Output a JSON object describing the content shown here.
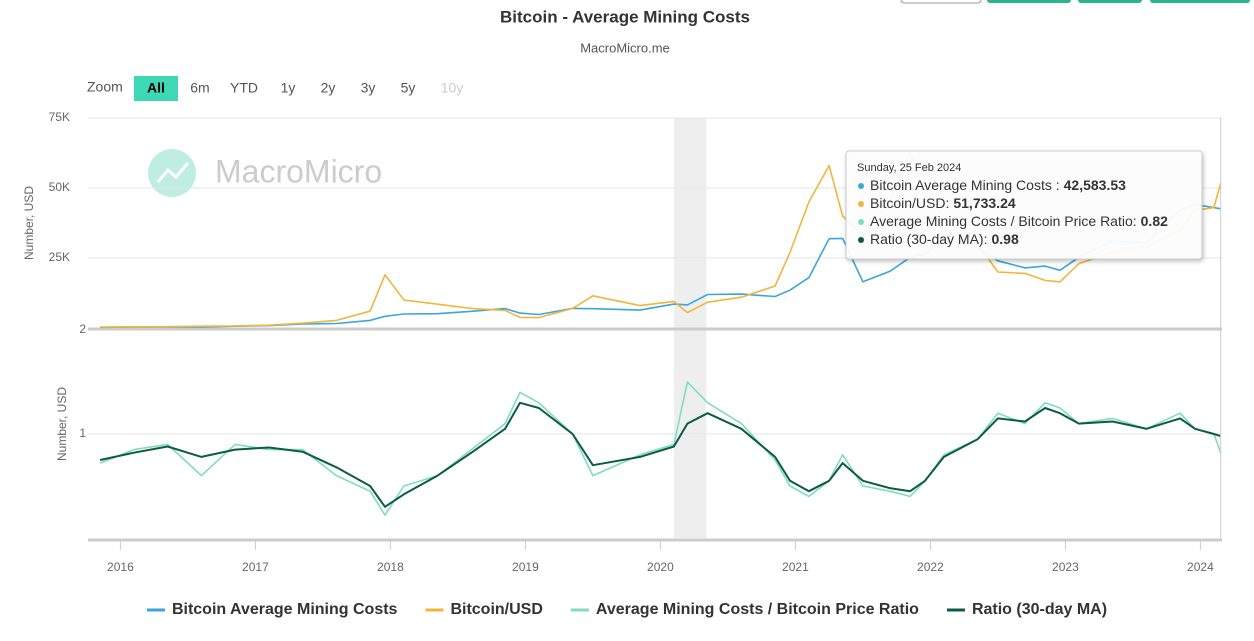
{
  "chart_data": {
    "type": "line",
    "title": "Bitcoin - Average Mining Costs",
    "subtitle": "MacroMicro.me",
    "watermark": "MacroMicro",
    "zoom": {
      "label": "Zoom",
      "buttons": [
        "All",
        "6m",
        "YTD",
        "1y",
        "2y",
        "3y",
        "5y",
        "10y"
      ],
      "active": "All",
      "disabled": [
        "10y"
      ]
    },
    "ylabel": "Number, USD",
    "y2label": "Number, USD",
    "x": [
      2015.85,
      2016.1,
      2016.35,
      2016.6,
      2016.85,
      2017.1,
      2017.35,
      2017.6,
      2017.85,
      2017.96,
      2018.1,
      2018.35,
      2018.6,
      2018.85,
      2018.96,
      2019.1,
      2019.35,
      2019.5,
      2019.85,
      2020.1,
      2020.2,
      2020.35,
      2020.6,
      2020.85,
      2020.96,
      2021.1,
      2021.25,
      2021.35,
      2021.5,
      2021.7,
      2021.85,
      2021.96,
      2022.1,
      2022.35,
      2022.5,
      2022.7,
      2022.85,
      2022.96,
      2023.1,
      2023.35,
      2023.6,
      2023.85,
      2023.96,
      2024.1,
      2024.15
    ],
    "xlim": [
      2015.76,
      2024.16
    ],
    "xticks": [
      2016,
      2017,
      2018,
      2019,
      2020,
      2021,
      2022,
      2023,
      2024
    ],
    "ylim": [
      0,
      75000
    ],
    "yticks": [
      {
        "value": 25000,
        "label": "25K"
      },
      {
        "value": 50000,
        "label": "50K"
      },
      {
        "value": 75000,
        "label": "75K"
      }
    ],
    "y2lim": [
      0,
      2
    ],
    "y2ticks": [
      1,
      2
    ],
    "highlight_range": [
      2020.1,
      2020.34
    ],
    "grid": true,
    "series": [
      {
        "name": "Bitcoin Average Mining Costs",
        "color": "#3aa7d8",
        "values": [
          240,
          340,
          405,
          390,
          630,
          850,
          1445,
          1620,
          2700,
          4180,
          5000,
          5100,
          5950,
          6930,
          5320,
          4810,
          7000,
          6900,
          6400,
          8550,
          8250,
          11960,
          12100,
          11250,
          13500,
          18000,
          31900,
          32000,
          16500,
          20250,
          25200,
          26400,
          32000,
          28500,
          24000,
          21450,
          22100,
          20600,
          25300,
          31050,
          30450,
          42000,
          44100,
          43000,
          42583.53
        ]
      },
      {
        "name": "Bitcoin/USD",
        "color": "#f0b63c",
        "values": [
          330,
          400,
          450,
          650,
          700,
          1000,
          1700,
          2700,
          6000,
          19000,
          10000,
          8500,
          7000,
          6300,
          3800,
          3700,
          7000,
          11500,
          8000,
          9500,
          5500,
          9200,
          11000,
          15000,
          27000,
          45000,
          58000,
          40000,
          33000,
          45000,
          63000,
          48000,
          40000,
          30000,
          20000,
          19500,
          17000,
          16500,
          23000,
          27000,
          29000,
          35000,
          42000,
          43000,
          51733.24
        ]
      },
      {
        "name": "Average Mining Costs / Bitcoin Price Ratio",
        "color": "#7fdcbf",
        "axis": "y2",
        "values": [
          0.72,
          0.85,
          0.9,
          0.6,
          0.9,
          0.85,
          0.85,
          0.6,
          0.45,
          0.22,
          0.5,
          0.6,
          0.85,
          1.1,
          1.4,
          1.3,
          1.0,
          0.6,
          0.8,
          0.9,
          1.5,
          1.3,
          1.1,
          0.75,
          0.5,
          0.4,
          0.55,
          0.8,
          0.5,
          0.45,
          0.4,
          0.55,
          0.8,
          0.95,
          1.2,
          1.1,
          1.3,
          1.25,
          1.1,
          1.15,
          1.05,
          1.2,
          1.05,
          1.0,
          0.82
        ]
      },
      {
        "name": "Ratio (30-day MA)",
        "color": "#0c5b44",
        "axis": "y2",
        "values": [
          0.75,
          0.82,
          0.88,
          0.78,
          0.85,
          0.87,
          0.83,
          0.68,
          0.5,
          0.3,
          0.42,
          0.6,
          0.82,
          1.05,
          1.3,
          1.25,
          1.0,
          0.7,
          0.78,
          0.88,
          1.1,
          1.2,
          1.05,
          0.78,
          0.55,
          0.45,
          0.55,
          0.72,
          0.55,
          0.48,
          0.45,
          0.55,
          0.78,
          0.95,
          1.15,
          1.12,
          1.25,
          1.2,
          1.1,
          1.12,
          1.05,
          1.15,
          1.05,
          1.0,
          0.98
        ]
      }
    ],
    "tooltip": {
      "date": "Sunday, 25 Feb 2024",
      "rows": [
        {
          "label": "Bitcoin Average Mining Costs :",
          "value_label": "42,583.53"
        },
        {
          "label": "Bitcoin/USD:",
          "value_label": "51,733.24"
        },
        {
          "label": "Average Mining Costs / Bitcoin Price Ratio:",
          "value_label": "0.82"
        },
        {
          "label": "Ratio (30-day MA):",
          "value_label": "0.98"
        }
      ]
    }
  }
}
